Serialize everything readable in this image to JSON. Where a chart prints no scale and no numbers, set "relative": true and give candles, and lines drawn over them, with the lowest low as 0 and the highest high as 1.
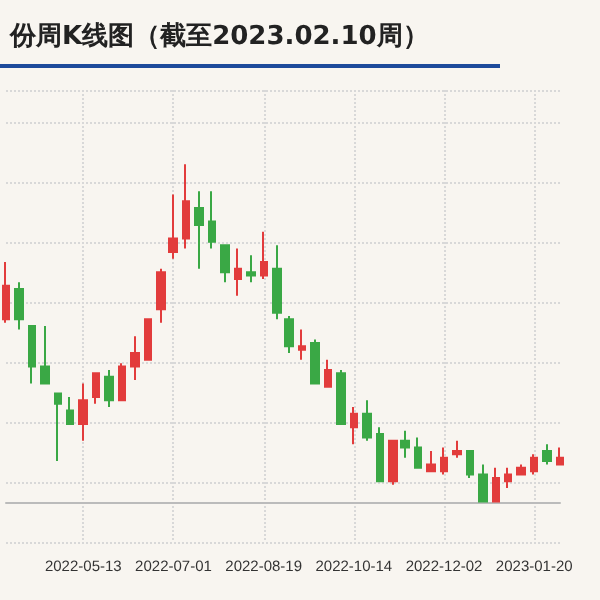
{
  "chart_data": {
    "type": "candlestick",
    "title": "份周K线图（截至2023.02.10周）",
    "relative": true,
    "grid": true,
    "colors": [
      "#e23c3c",
      "#3aa845",
      "#3aa845",
      "#3aa845",
      "#3aa845",
      "#3aa845",
      "#e23c3c",
      "#e23c3c",
      "#3aa845",
      "#e23c3c",
      "#e23c3c",
      "#e23c3c",
      "#e23c3c",
      "#e23c3c",
      "#e23c3c",
      "#3aa845",
      "#3aa845",
      "#3aa845",
      "#e23c3c",
      "#3aa845",
      "#e23c3c",
      "#3aa845",
      "#3aa845",
      "#e23c3c",
      "#3aa845",
      "#e23c3c",
      "#3aa845",
      "#e23c3c",
      "#3aa845",
      "#3aa845",
      "#e23c3c",
      "#3aa845",
      "#3aa845",
      "#e23c3c",
      "#e23c3c",
      "#e23c3c",
      "#3aa845",
      "#3aa845",
      "#e23c3c",
      "#e23c3c",
      "#e23c3c",
      "#e23c3c",
      "#3aa845",
      "#e23c3c"
    ],
    "categories": [
      null,
      null,
      null,
      null,
      null,
      null,
      "2022-05-13",
      null,
      null,
      null,
      null,
      null,
      null,
      "2022-07-01",
      null,
      null,
      null,
      null,
      null,
      null,
      "2022-08-19",
      null,
      null,
      null,
      null,
      null,
      null,
      "2022-10-14",
      null,
      null,
      null,
      null,
      null,
      null,
      "2022-12-02",
      null,
      null,
      null,
      null,
      null,
      null,
      "2023-01-20",
      null,
      null
    ],
    "ohlc": [
      [
        0.54,
        0.71,
        0.53,
        0.64
      ],
      [
        0.63,
        0.65,
        0.51,
        0.54
      ],
      [
        0.52,
        0.52,
        0.35,
        0.4
      ],
      [
        0.4,
        0.52,
        0.35,
        0.35
      ],
      [
        0.32,
        0.32,
        0.12,
        0.29
      ],
      [
        0.27,
        0.31,
        0.23,
        0.23
      ],
      [
        0.23,
        0.35,
        0.18,
        0.3
      ],
      [
        0.31,
        0.38,
        0.29,
        0.38
      ],
      [
        0.37,
        0.39,
        0.28,
        0.3
      ],
      [
        0.3,
        0.41,
        0.3,
        0.4
      ],
      [
        0.4,
        0.49,
        0.36,
        0.44
      ],
      [
        0.42,
        0.54,
        0.42,
        0.54
      ],
      [
        0.57,
        0.69,
        0.53,
        0.68
      ],
      [
        0.74,
        0.91,
        0.72,
        0.78
      ],
      [
        0.78,
        1,
        0.75,
        0.89
      ],
      [
        0.87,
        0.92,
        0.69,
        0.82
      ],
      [
        0.83,
        0.92,
        0.75,
        0.77
      ],
      [
        0.76,
        0.76,
        0.65,
        0.68
      ],
      [
        0.66,
        0.75,
        0.61,
        0.69
      ],
      [
        0.68,
        0.73,
        0.65,
        0.67
      ],
      [
        0.67,
        0.8,
        0.66,
        0.71
      ],
      [
        0.69,
        0.76,
        0.54,
        0.56
      ],
      [
        0.54,
        0.55,
        0.44,
        0.46
      ],
      [
        0.45,
        0.51,
        0.42,
        0.46
      ],
      [
        0.47,
        0.48,
        0.35,
        0.35
      ],
      [
        0.34,
        0.42,
        0.34,
        0.39
      ],
      [
        0.38,
        0.39,
        0.23,
        0.23
      ],
      [
        0.22,
        0.28,
        0.17,
        0.26
      ],
      [
        0.26,
        0.3,
        0.18,
        0.19
      ],
      [
        0.2,
        0.22,
        0.06,
        0.06
      ],
      [
        0.06,
        0.18,
        0.05,
        0.18
      ],
      [
        0.18,
        0.21,
        0.13,
        0.16
      ],
      [
        0.16,
        0.19,
        0.1,
        0.1
      ],
      [
        0.09,
        0.15,
        0.09,
        0.11
      ],
      [
        0.09,
        0.16,
        0.08,
        0.13
      ],
      [
        0.14,
        0.18,
        0.13,
        0.15
      ],
      [
        0.15,
        0.15,
        0.07,
        0.08
      ],
      [
        0.08,
        0.11,
        0,
        0
      ],
      [
        0,
        0.1,
        0,
        0.07
      ],
      [
        0.06,
        0.1,
        0.04,
        0.08
      ],
      [
        0.08,
        0.11,
        0.08,
        0.1
      ],
      [
        0.09,
        0.14,
        0.08,
        0.13
      ],
      [
        0.15,
        0.17,
        0.11,
        0.12
      ],
      [
        0.11,
        0.16,
        0.11,
        0.13
      ]
    ]
  }
}
